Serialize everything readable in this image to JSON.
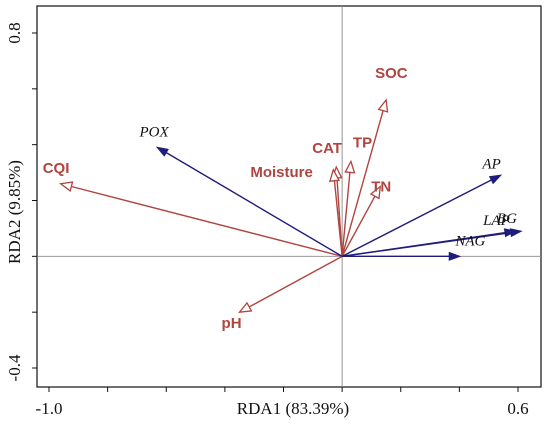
{
  "chart_data": {
    "type": "scatter",
    "xlabel": "RDA1 (83.39%)",
    "ylabel": "RDA2 (9.85%)",
    "xlim": [
      -1.05,
      0.62
    ],
    "ylim": [
      -0.48,
      0.84
    ],
    "x_ticks": [
      {
        "value": -1.0,
        "label": "-1.0"
      },
      {
        "value": 0.6,
        "label": "0.6"
      }
    ],
    "y_ticks": [
      {
        "value": 0.8,
        "label": "0.8"
      },
      {
        "value": -0.4,
        "label": "-0.4"
      }
    ],
    "grid": false,
    "colors": {
      "environmental": "#b0443f",
      "enzyme": "#1f1c7d"
    },
    "series": [
      {
        "name": "",
        "group": "environmental",
        "arrow": "open-triangle",
        "points": [
          {
            "label": "SOC",
            "x": 0.15,
            "y": 0.56
          },
          {
            "label": "TP",
            "x": 0.03,
            "y": 0.34
          },
          {
            "label": "CAT",
            "x": -0.02,
            "y": 0.32
          },
          {
            "label": "Moisture",
            "x": -0.03,
            "y": 0.31
          },
          {
            "label": "TN",
            "x": 0.13,
            "y": 0.25
          },
          {
            "label": "CQI",
            "x": -0.96,
            "y": 0.26
          },
          {
            "label": "pH",
            "x": -0.35,
            "y": -0.2
          }
        ]
      },
      {
        "name": "",
        "group": "enzyme",
        "arrow": "filled-triangle",
        "points": [
          {
            "label": "POX",
            "x": -0.63,
            "y": 0.39
          },
          {
            "label": "AP",
            "x": 0.54,
            "y": 0.29
          },
          {
            "label": "LAP",
            "x": 0.59,
            "y": 0.09
          },
          {
            "label": "BG",
            "x": 0.61,
            "y": 0.09
          },
          {
            "label": "NAG",
            "x": 0.4,
            "y": 0.0
          }
        ]
      }
    ]
  }
}
